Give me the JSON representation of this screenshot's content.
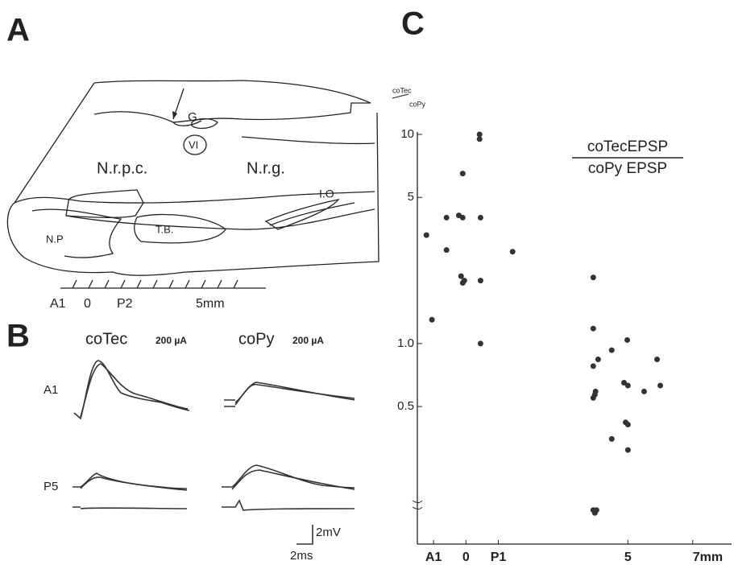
{
  "figure": {
    "panel_labels": [
      "A",
      "B",
      "C"
    ]
  },
  "diagram": {
    "labels": [
      "G",
      "VI",
      "N.r.p.c.",
      "N.r.g.",
      "I.O",
      "N.P",
      "T.B."
    ],
    "scale_labels": [
      "A1",
      "0",
      "P2",
      "5mm"
    ]
  },
  "traces": {
    "columns": [
      "coTec",
      "coPy"
    ],
    "stimulus": [
      "200 µA",
      "200 µA"
    ],
    "rows": [
      "A1",
      "P5"
    ],
    "scale_bar": {
      "voltage": "2mV",
      "time": "2ms"
    }
  },
  "chart_data": {
    "type": "scatter",
    "title": {
      "numerator": "coTecEPSP",
      "denominator": "coPy EPSP"
    },
    "ylabel": {
      "numerator": "coTec",
      "denominator": "coPy"
    },
    "log_y": true,
    "color": "#333333",
    "xlim": [
      -1.5,
      8.2
    ],
    "ylim": [
      0.11,
      10
    ],
    "xticks": [
      {
        "value": -1,
        "label": "A1"
      },
      0,
      {
        "value": 1,
        "label": "P1"
      },
      5,
      {
        "value": 7,
        "label": "7mm"
      }
    ],
    "yticks": [
      10,
      5,
      {
        "value": 1,
        "label": "1.0"
      },
      0.5
    ],
    "x": [
      -1.22,
      -1.05,
      -0.6,
      -0.6,
      -0.22,
      -0.1,
      -0.1,
      -0.15,
      -0.05,
      -0.1,
      0.42,
      0.42,
      0.45,
      0.45,
      0.45,
      1.44,
      3.93,
      3.93,
      4.08,
      3.93,
      3.98,
      4.0,
      3.93,
      4.5,
      4.98,
      4.88,
      5.0,
      4.93,
      5.0,
      4.5,
      5.0,
      5.5,
      5.9,
      6.0,
      3.93,
      4.03,
      3.98
    ],
    "values": [
      3.3,
      1.3,
      4.0,
      2.8,
      4.1,
      4.0,
      6.5,
      2.1,
      2.0,
      1.95,
      10,
      9.5,
      4.0,
      2.0,
      1.0,
      2.75,
      2.07,
      1.18,
      0.84,
      0.78,
      0.57,
      0.59,
      0.55,
      0.93,
      1.04,
      0.65,
      0.63,
      0.42,
      0.41,
      0.35,
      0.31,
      0.59,
      0.84,
      0.63,
      0.16,
      0.16,
      0.155
    ]
  }
}
